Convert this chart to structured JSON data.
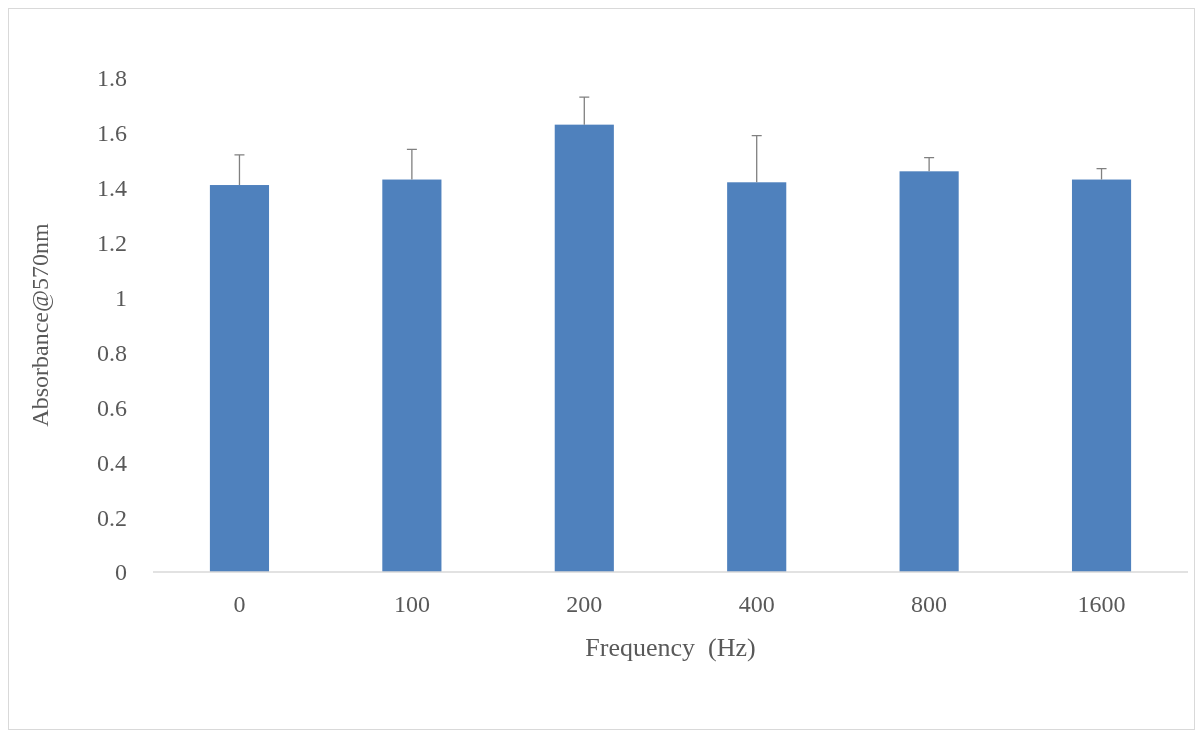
{
  "chart_data": {
    "type": "bar",
    "xlabel": "Frequency  (Hz)",
    "ylabel": "Absorbance@570nm",
    "categories": [
      "0",
      "100",
      "200",
      "400",
      "800",
      "1600"
    ],
    "values": [
      1.41,
      1.43,
      1.63,
      1.42,
      1.46,
      1.43
    ],
    "errors": [
      [
        1.41,
        1.52
      ],
      [
        1.43,
        1.54
      ],
      [
        1.63,
        1.73
      ],
      [
        1.42,
        1.59
      ],
      [
        1.46,
        1.51
      ],
      [
        1.43,
        1.47
      ]
    ],
    "color": "#4f81bd",
    "ylim": [
      0,
      1.8
    ],
    "yticks": [
      0,
      0.2,
      0.4,
      0.6,
      0.8,
      1,
      1.2,
      1.4,
      1.6,
      1.8
    ],
    "grid": false
  }
}
